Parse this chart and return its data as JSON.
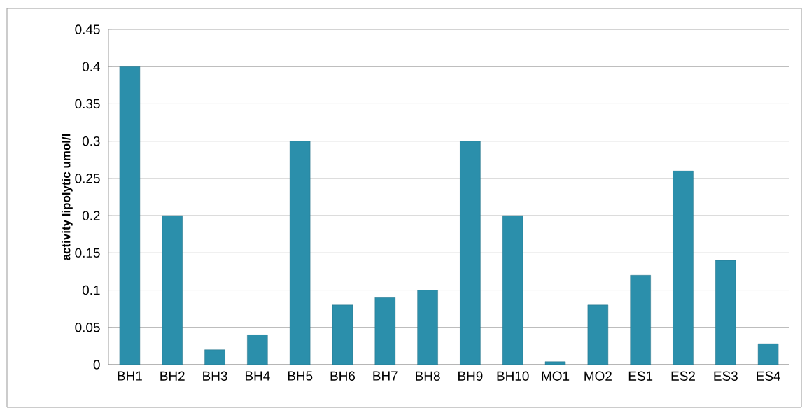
{
  "chart_data": {
    "type": "bar",
    "ylabel": "activity lipolytic umol/l",
    "categories": [
      "BH1",
      "BH2",
      "BH3",
      "BH4",
      "BH5",
      "BH6",
      "BH7",
      "BH8",
      "BH9",
      "BH10",
      "MO1",
      "MO2",
      "ES1",
      "ES2",
      "ES3",
      "ES4"
    ],
    "values": [
      0.4,
      0.2,
      0.02,
      0.04,
      0.3,
      0.08,
      0.09,
      0.1,
      0.3,
      0.2,
      0.004,
      0.08,
      0.12,
      0.26,
      0.14,
      0.028
    ],
    "color": "#2b8fab",
    "ylim": [
      0,
      0.45
    ],
    "yticks": [
      0,
      0.05,
      0.1,
      0.15,
      0.2,
      0.25,
      0.3,
      0.35,
      0.4,
      0.45
    ],
    "grid": "y"
  }
}
